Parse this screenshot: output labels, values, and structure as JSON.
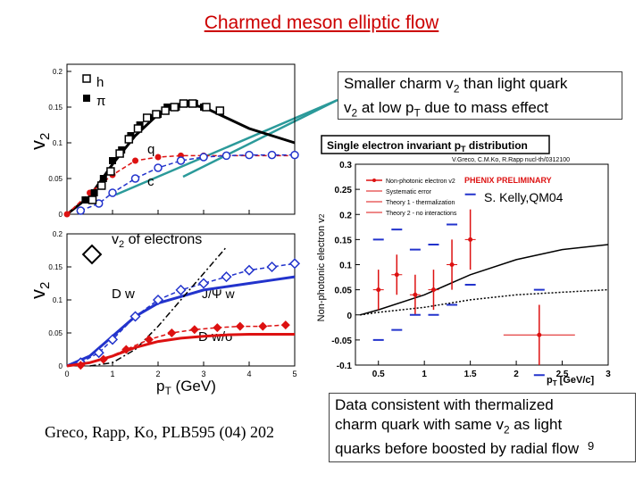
{
  "slide": {
    "title": "Charmed meson elliptic flow",
    "callout_mass": {
      "l1a": "Smaller charm v",
      "l1s": "2",
      "l1b": " than light quark",
      "l2a": "v",
      "l2s": "2",
      "l2b": " at low p",
      "l2s2": "T",
      "l2c": " due to mass effect"
    },
    "callout_thermal": {
      "l1": "Data consistent with thermalized",
      "l2a": "charm quark with same v",
      "l2s": "2",
      "l2b": " as light",
      "l3": "quarks before boosted by radial flow"
    },
    "citation": "Greco, Rapp, Ko, PLB595 (04) 202",
    "page_number": "9",
    "colors": {
      "title": "#cc0000",
      "arrow": "#2b9a9a",
      "blue": "#2233cc",
      "red": "#dd1111"
    }
  },
  "chart_data": [
    {
      "type": "line",
      "name": "hadron-quark v2",
      "ylabel_main": "v",
      "ylabel_sub": "2",
      "ylim": [
        0,
        0.21
      ],
      "xlim": [
        0,
        5
      ],
      "yticks": [
        "0",
        "0.05",
        "0.1",
        "0.15",
        "0.2"
      ],
      "legend": [
        {
          "label": "h",
          "marker": "open-square"
        },
        {
          "label": "π",
          "marker": "filled-square"
        }
      ],
      "annotations": [
        "q",
        "c"
      ],
      "series": [
        {
          "name": "h",
          "x": [
            0.5,
            0.7,
            0.9,
            1.1,
            1.3,
            1.5,
            1.7,
            1.9,
            2.1,
            2.3,
            2.5,
            2.7,
            3.0,
            3.3
          ],
          "y": [
            0.02,
            0.04,
            0.06,
            0.085,
            0.105,
            0.12,
            0.135,
            0.14,
            0.145,
            0.15,
            0.155,
            0.155,
            0.15,
            0.145
          ]
        },
        {
          "name": "π",
          "x": [
            0.4,
            0.6,
            0.8,
            1.0,
            1.2,
            1.4,
            1.6,
            1.8,
            2.0,
            2.2,
            2.4,
            2.6,
            2.8,
            3.0
          ],
          "y": [
            0.02,
            0.03,
            0.05,
            0.075,
            0.09,
            0.11,
            0.125,
            0.135,
            0.14,
            0.15,
            0.15,
            0.155,
            0.155,
            0.15
          ]
        },
        {
          "name": "hadron curve",
          "x": [
            0,
            0.5,
            1,
            1.5,
            2,
            2.5,
            3,
            3.5,
            4,
            4.5,
            5
          ],
          "y": [
            0,
            0.025,
            0.07,
            0.11,
            0.14,
            0.155,
            0.15,
            0.135,
            0.12,
            0.11,
            0.1
          ]
        },
        {
          "name": "q",
          "x": [
            0,
            0.5,
            1,
            1.5,
            2,
            2.5,
            3,
            3.5,
            4,
            4.5,
            5
          ],
          "y": [
            0,
            0.03,
            0.055,
            0.075,
            0.08,
            0.082,
            0.082,
            0.082,
            0.082,
            0.082,
            0.082
          ]
        },
        {
          "name": "c",
          "x": [
            0.3,
            0.7,
            1,
            1.5,
            2,
            2.5,
            3,
            3.5,
            4,
            4.5,
            5
          ],
          "y": [
            0.005,
            0.015,
            0.03,
            0.05,
            0.065,
            0.075,
            0.08,
            0.082,
            0.083,
            0.083,
            0.083
          ]
        }
      ]
    },
    {
      "type": "line",
      "name": "electron v2",
      "title_main": "v",
      "title_sub": "2",
      "title_rest": " of electrons",
      "ylabel_main": "v",
      "ylabel_sub": "2",
      "xlabel_main": "p",
      "xlabel_sub": "T",
      "xlabel_rest": " (GeV)",
      "ylim": [
        0,
        0.2
      ],
      "xlim": [
        0,
        5
      ],
      "xticks": [
        "0",
        "1",
        "2",
        "3",
        "4",
        "5"
      ],
      "yticks": [
        "0",
        "0.05",
        "0.1",
        "0.15",
        "0.2"
      ],
      "labels": {
        "dw": "D w",
        "jpsi": "J/Ψ w",
        "dwo": "D w/o"
      },
      "series": [
        {
          "name": "D w",
          "x": [
            0.3,
            0.7,
            1.0,
            1.5,
            2.0,
            2.5,
            3.0,
            3.5,
            4.0,
            4.5,
            5.0
          ],
          "y": [
            0.005,
            0.02,
            0.04,
            0.075,
            0.1,
            0.115,
            0.125,
            0.135,
            0.145,
            0.15,
            0.155
          ]
        },
        {
          "name": "D w curve",
          "x": [
            0,
            0.5,
            1,
            1.5,
            2,
            2.5,
            3,
            3.5,
            4,
            4.5,
            5
          ],
          "y": [
            0,
            0.015,
            0.045,
            0.075,
            0.095,
            0.105,
            0.115,
            0.12,
            0.125,
            0.13,
            0.135
          ]
        },
        {
          "name": "J/Ψ w",
          "x": [
            0.5,
            1,
            1.5,
            2,
            2.5,
            3,
            3.5
          ],
          "y": [
            0,
            0.005,
            0.025,
            0.06,
            0.1,
            0.14,
            0.18
          ]
        },
        {
          "name": "D w/o markers",
          "x": [
            0.3,
            0.8,
            1.3,
            1.8,
            2.3,
            2.8,
            3.3,
            3.8,
            4.3,
            4.8
          ],
          "y": [
            0.001,
            0.01,
            0.025,
            0.04,
            0.05,
            0.055,
            0.058,
            0.06,
            0.06,
            0.062
          ]
        },
        {
          "name": "D w/o curve",
          "x": [
            0,
            0.5,
            1,
            1.5,
            2,
            2.5,
            3,
            3.5,
            4,
            4.5,
            5
          ],
          "y": [
            0,
            0.005,
            0.015,
            0.028,
            0.037,
            0.042,
            0.045,
            0.047,
            0.048,
            0.048,
            0.048
          ]
        }
      ]
    },
    {
      "type": "scatter",
      "name": "PHENIX electron v2",
      "title_a": "Single electron invariant p",
      "title_sub": "T",
      "title_b": " distribution",
      "ref": "V.Greco, C.M.Ko, R.Rapp nucl-th/0312100",
      "ylabel": "Non-photonic electron v",
      "ylabel_sub": "2",
      "xlabel_a": "p",
      "xlabel_sub": "T",
      "xlabel_b": " [GeV/c]",
      "stamp": "PHENIX PRELIMINARY",
      "credit": "S. Kelly,QM04",
      "legend": [
        "Non-photonic electron v2",
        "Systematic error",
        "Theory 1 - thermalization",
        "Theory 2 - no interactions"
      ],
      "xlim": [
        0.25,
        3
      ],
      "ylim": [
        -0.1,
        0.3
      ],
      "xticks": [
        "0.5",
        "1",
        "1.5",
        "2",
        "2.5",
        "3"
      ],
      "yticks": [
        "-0.1",
        "-0.05",
        "0",
        "0.05",
        "0.1",
        "0.15",
        "0.2",
        "0.25",
        "0.3"
      ],
      "points": [
        {
          "x": 0.5,
          "y": 0.05,
          "err": 0.04,
          "sys_hi": 0.15,
          "sys_lo": -0.05
        },
        {
          "x": 0.7,
          "y": 0.08,
          "err": 0.04,
          "sys_hi": 0.17,
          "sys_lo": -0.03
        },
        {
          "x": 0.9,
          "y": 0.04,
          "err": 0.04,
          "sys_hi": 0.13,
          "sys_lo": 0.0
        },
        {
          "x": 1.1,
          "y": 0.05,
          "err": 0.04,
          "sys_hi": 0.14,
          "sys_lo": 0.0
        },
        {
          "x": 1.3,
          "y": 0.1,
          "err": 0.05,
          "sys_hi": 0.18,
          "sys_lo": 0.02
        },
        {
          "x": 1.5,
          "y": 0.15,
          "err": 0.06,
          "sys_hi": 0.24,
          "sys_lo": 0.06
        },
        {
          "x": 2.25,
          "y": -0.04,
          "err": 0.06,
          "sys_hi": 0.05,
          "sys_lo": -0.12
        }
      ],
      "theory1": {
        "x": [
          0.3,
          0.5,
          1,
          1.5,
          2,
          2.5,
          3
        ],
        "y": [
          0.0,
          0.01,
          0.04,
          0.08,
          0.11,
          0.13,
          0.14
        ]
      },
      "theory2": {
        "x": [
          0.3,
          0.5,
          1,
          1.5,
          2,
          2.5,
          3
        ],
        "y": [
          0.0,
          0.005,
          0.015,
          0.03,
          0.04,
          0.045,
          0.05
        ]
      }
    }
  ]
}
